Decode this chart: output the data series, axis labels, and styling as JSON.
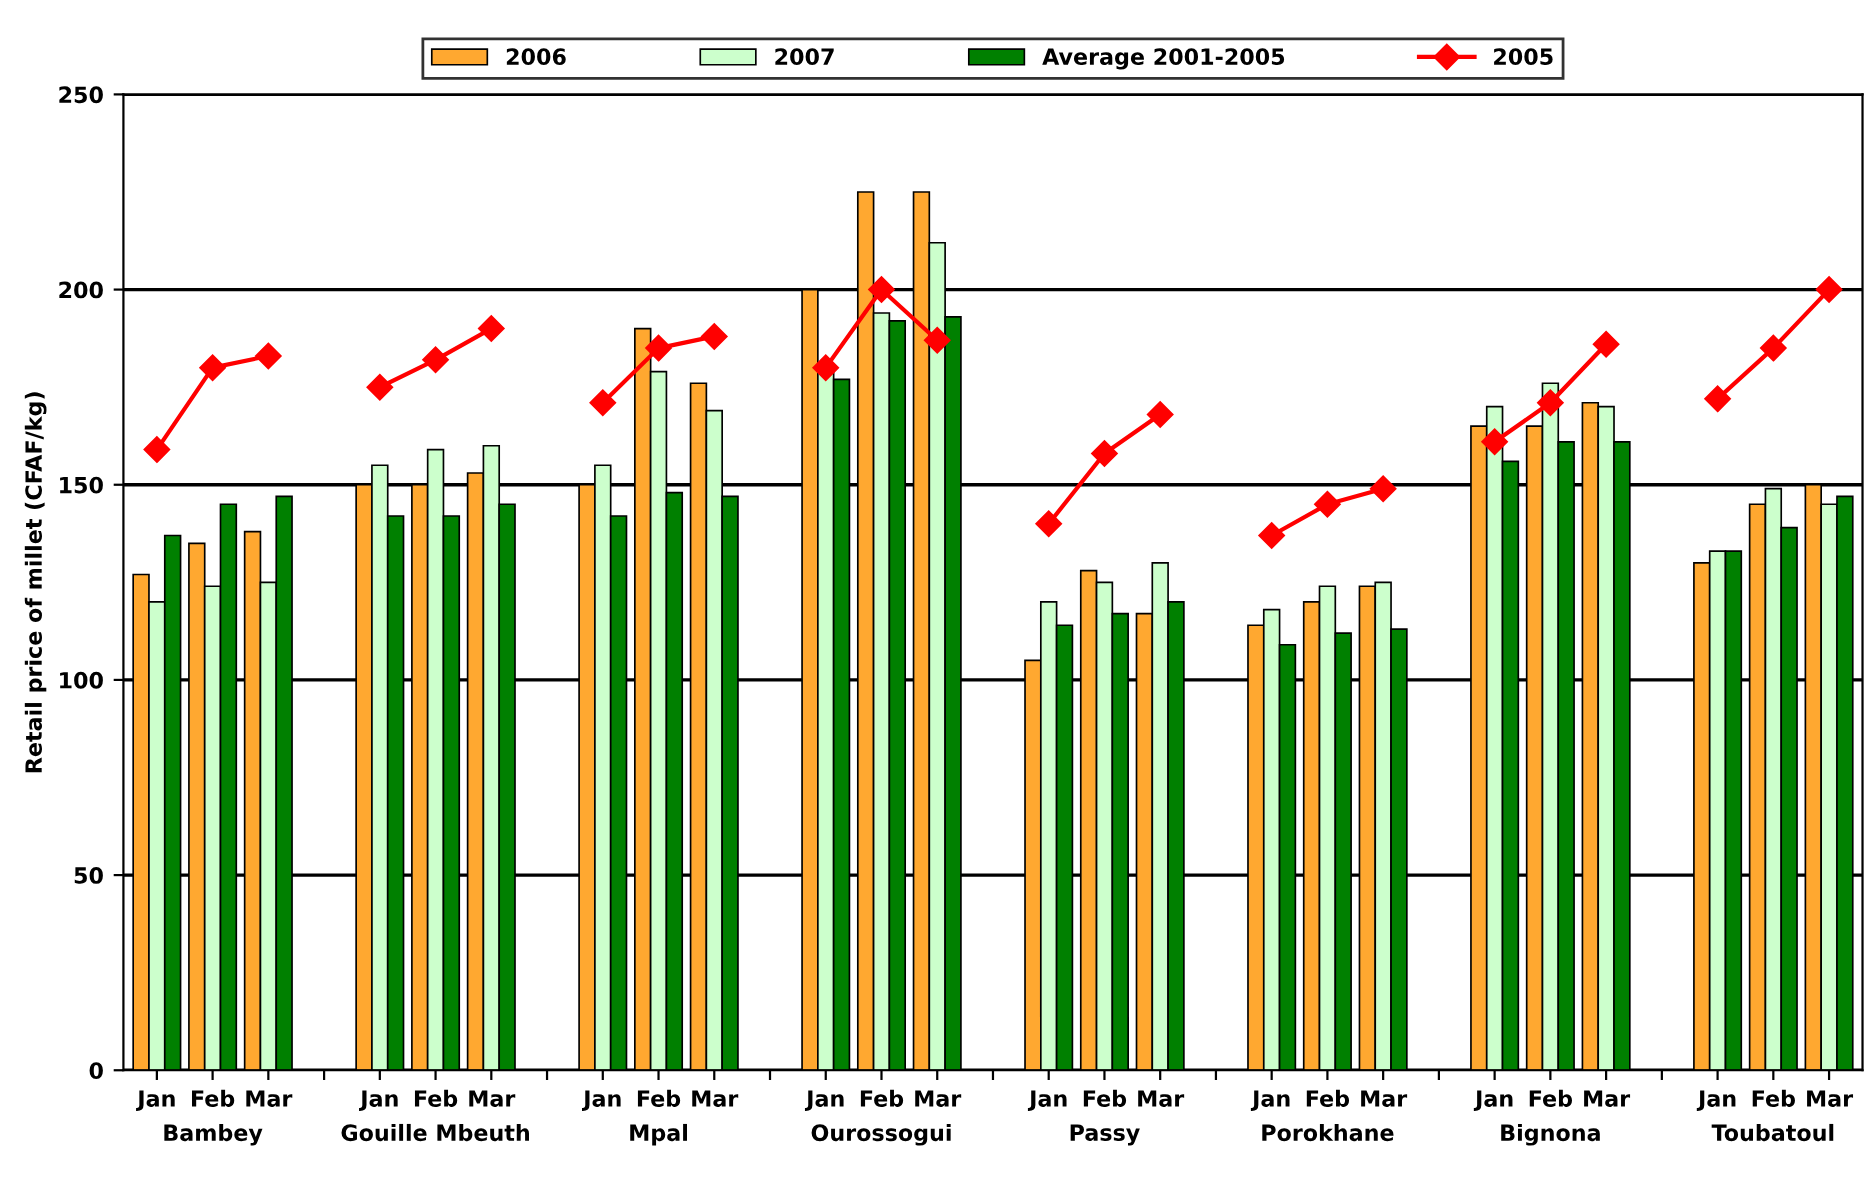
{
  "chart_data": {
    "type": "bar",
    "ylabel": "Retail price of millet (CFAF/kg)",
    "categories": [
      "Jan",
      "Feb",
      "Mar",
      null,
      "Jan",
      "Feb",
      "Mar",
      null,
      "Jan",
      "Feb",
      "Mar",
      null,
      "Jan",
      "Feb",
      "Mar",
      null,
      "Jan",
      "Feb",
      "Mar",
      null,
      "Jan",
      "Feb",
      "Mar",
      null,
      "Jan",
      "Feb",
      "Mar",
      null,
      "Jan",
      "Feb",
      "Mar"
    ],
    "series": [
      {
        "name": "2006",
        "color": "#ffa830",
        "values": [
          127,
          135,
          138,
          null,
          150,
          150,
          153,
          null,
          150,
          190,
          176,
          null,
          200,
          225,
          225,
          null,
          105,
          128,
          117,
          null,
          114,
          120,
          124,
          null,
          165,
          165,
          171,
          null,
          130,
          145,
          150
        ]
      },
      {
        "name": "2007",
        "color": "#ccffcc",
        "values": [
          120,
          124,
          125,
          null,
          155,
          159,
          160,
          null,
          155,
          179,
          169,
          null,
          180,
          194,
          212,
          null,
          120,
          125,
          130,
          null,
          118,
          124,
          125,
          null,
          170,
          176,
          170,
          null,
          133,
          149,
          145
        ]
      },
      {
        "name": "Average 2001-2005",
        "color": "#008000",
        "values": [
          137,
          145,
          147,
          null,
          142,
          142,
          145,
          null,
          142,
          148,
          147,
          null,
          177,
          192,
          193,
          null,
          114,
          117,
          120,
          null,
          109,
          112,
          113,
          null,
          156,
          161,
          161,
          null,
          133,
          139,
          147
        ]
      },
      {
        "name": "2005",
        "type": "line",
        "color": "#ff0000",
        "marker": "diamond",
        "values": [
          159,
          180,
          183,
          null,
          175,
          182,
          190,
          null,
          171,
          185,
          188,
          null,
          180,
          200,
          187,
          null,
          140,
          158,
          168,
          null,
          137,
          145,
          149,
          null,
          161,
          171,
          186,
          null,
          172,
          185,
          200
        ]
      }
    ],
    "annotations": [
      "Bambey",
      "Gouille Mbeuth",
      "Mpal",
      "Ourossogui",
      "Passy",
      "Porokhane",
      "Bignona",
      "Toubatoul"
    ],
    "ylim": [
      0,
      250
    ],
    "yticks": [
      0,
      50,
      100,
      150,
      200,
      250
    ],
    "grid": "y",
    "legend": "top"
  }
}
